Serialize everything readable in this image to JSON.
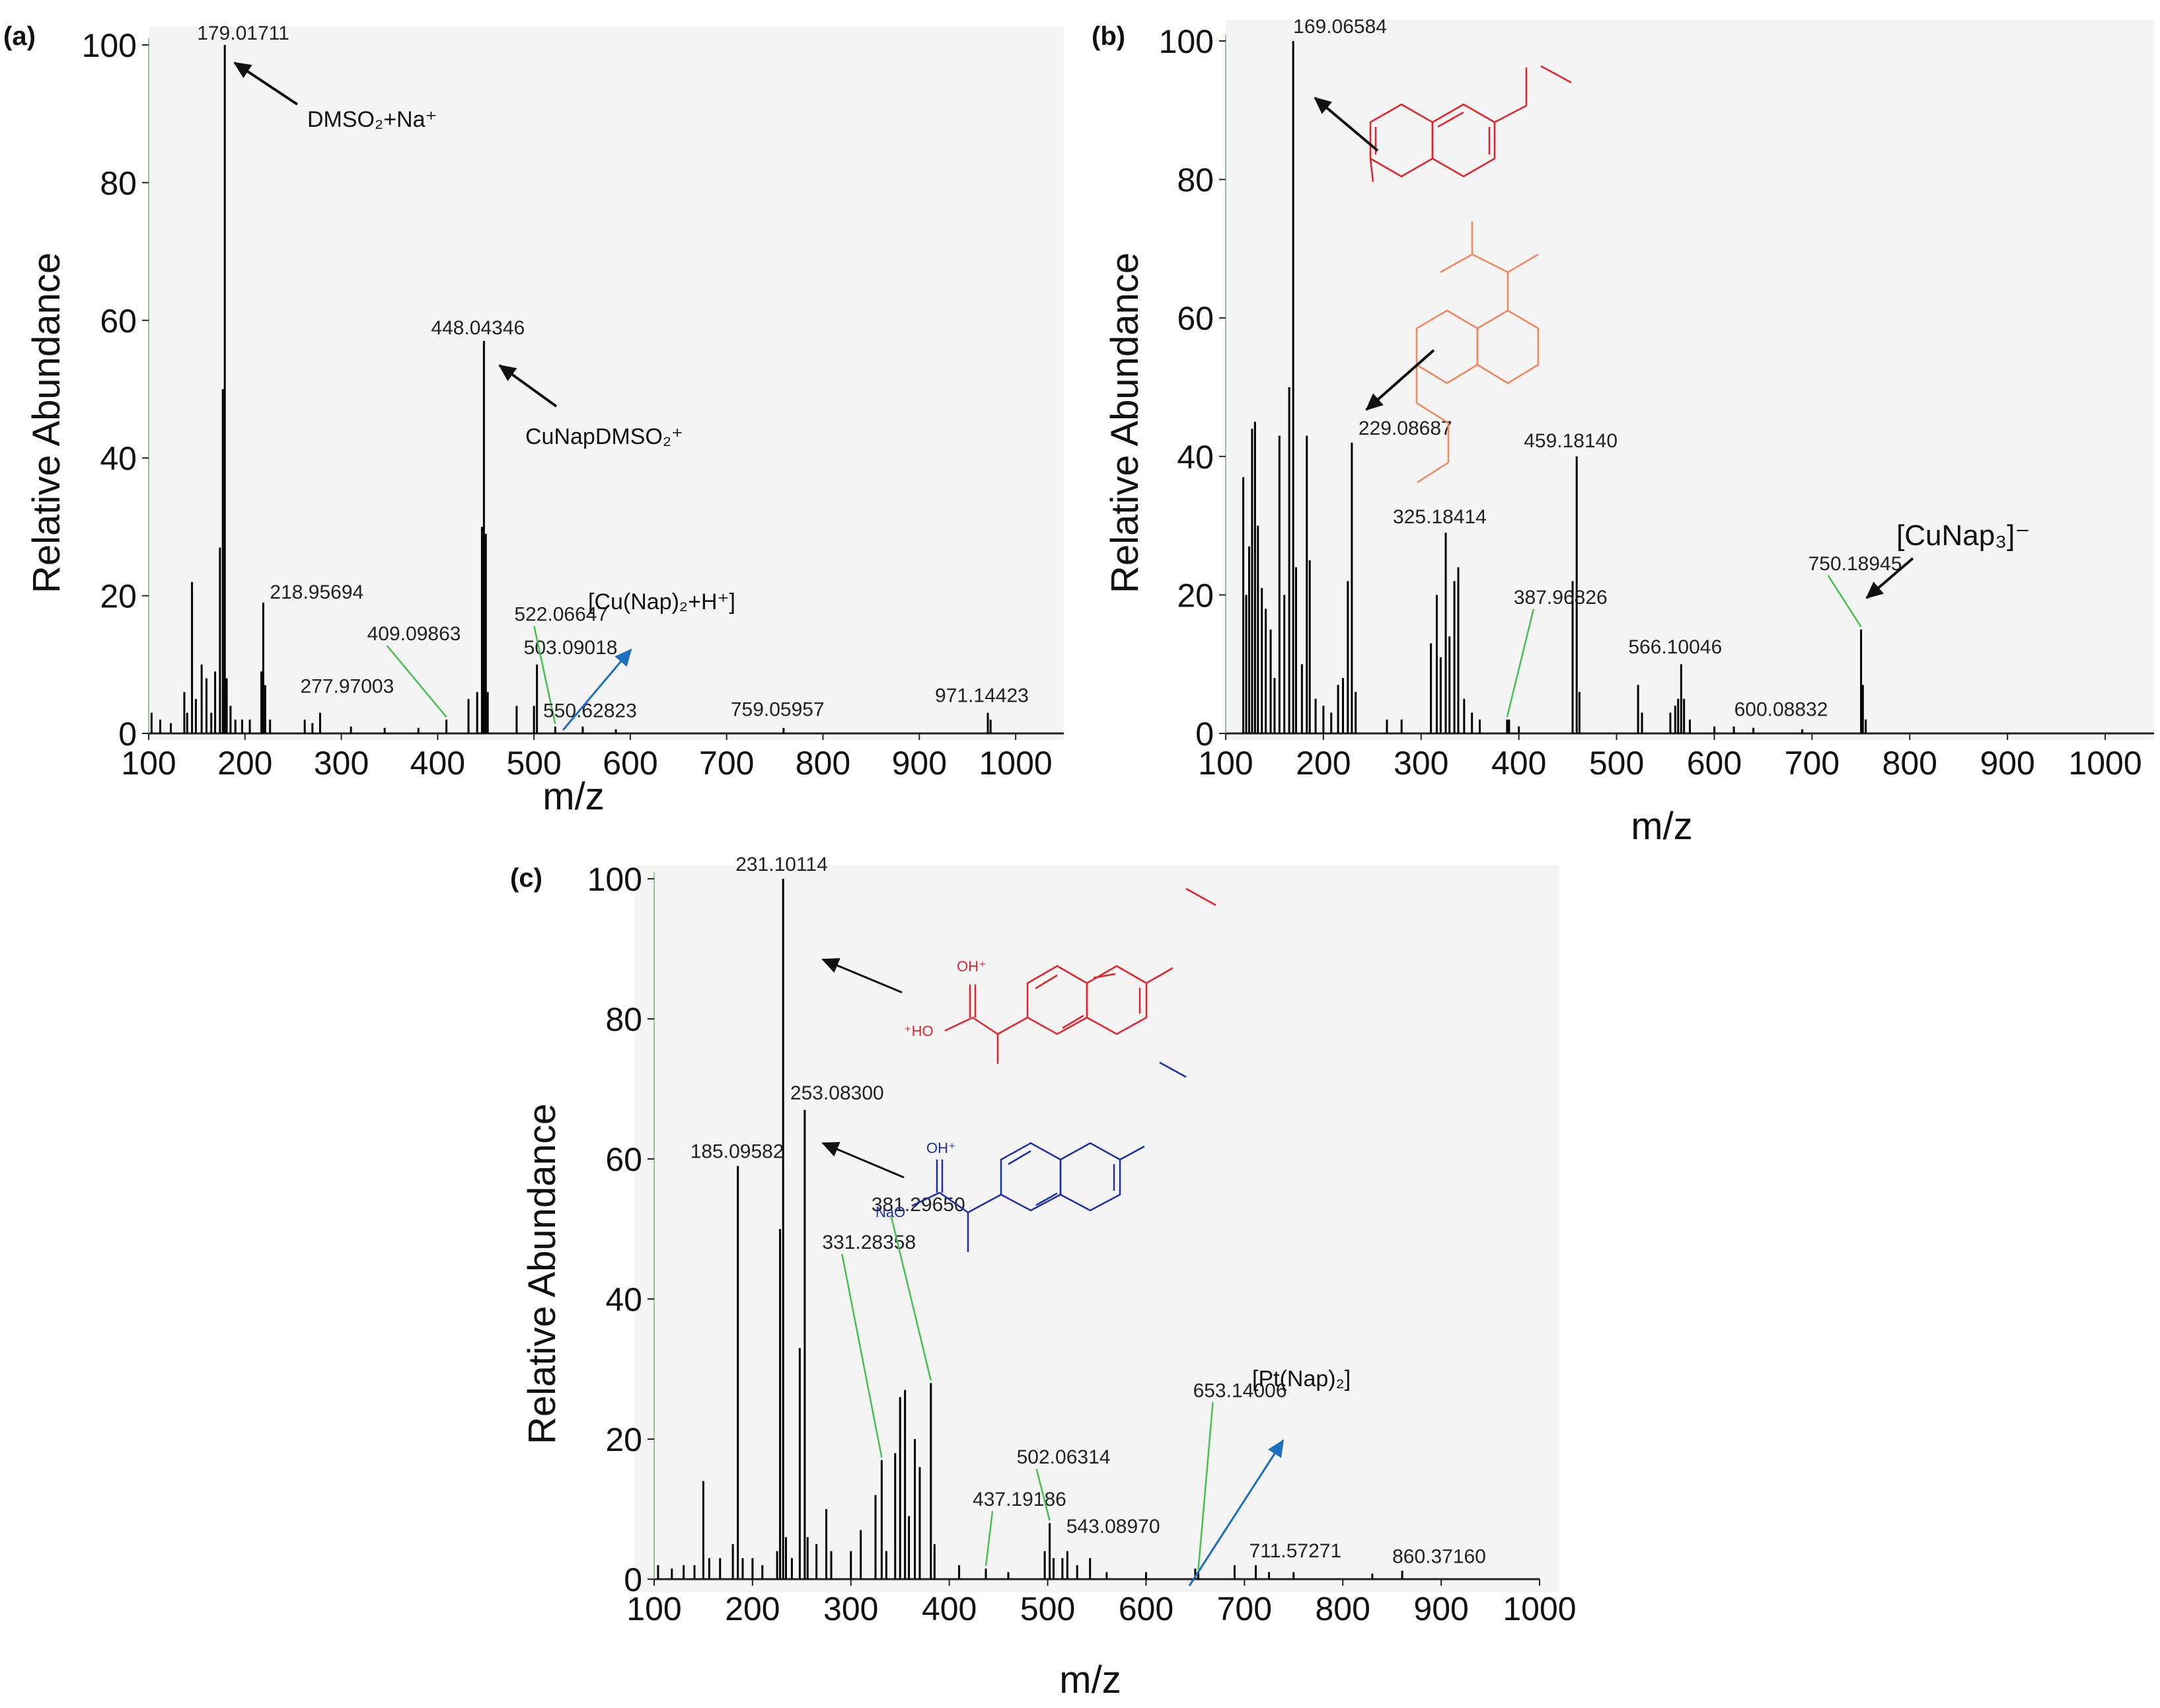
{
  "chart_data": [
    {
      "panel": "(a)",
      "type": "bar",
      "xlabel": "m/z",
      "ylabel": "Relative Abundance",
      "xlim": [
        100,
        1050
      ],
      "ylim": [
        0,
        100
      ],
      "xticks": [
        100,
        200,
        300,
        400,
        500,
        600,
        700,
        800,
        900,
        1000
      ],
      "yticks": [
        0,
        20,
        40,
        60,
        80,
        100
      ],
      "peaks": [
        {
          "x": 103,
          "y": 3
        },
        {
          "x": 112,
          "y": 2
        },
        {
          "x": 123,
          "y": 1.5
        },
        {
          "x": 137,
          "y": 6
        },
        {
          "x": 140,
          "y": 3
        },
        {
          "x": 145,
          "y": 22
        },
        {
          "x": 149,
          "y": 5
        },
        {
          "x": 155,
          "y": 10
        },
        {
          "x": 160,
          "y": 8
        },
        {
          "x": 165,
          "y": 3
        },
        {
          "x": 169,
          "y": 9
        },
        {
          "x": 174,
          "y": 27
        },
        {
          "x": 177,
          "y": 50
        },
        {
          "x": 179.01711,
          "y": 100
        },
        {
          "x": 181,
          "y": 8
        },
        {
          "x": 185,
          "y": 4
        },
        {
          "x": 190,
          "y": 2
        },
        {
          "x": 197,
          "y": 2
        },
        {
          "x": 205,
          "y": 2
        },
        {
          "x": 217,
          "y": 9
        },
        {
          "x": 218.95694,
          "y": 19
        },
        {
          "x": 221,
          "y": 7
        },
        {
          "x": 226,
          "y": 2
        },
        {
          "x": 262,
          "y": 2
        },
        {
          "x": 270,
          "y": 1.5
        },
        {
          "x": 277.97003,
          "y": 3
        },
        {
          "x": 310,
          "y": 1
        },
        {
          "x": 345,
          "y": 0.8
        },
        {
          "x": 380,
          "y": 0.8
        },
        {
          "x": 409.09863,
          "y": 2
        },
        {
          "x": 432,
          "y": 5
        },
        {
          "x": 441,
          "y": 6
        },
        {
          "x": 446,
          "y": 30
        },
        {
          "x": 448.04346,
          "y": 57
        },
        {
          "x": 450,
          "y": 29
        },
        {
          "x": 452,
          "y": 6
        },
        {
          "x": 482,
          "y": 4
        },
        {
          "x": 500,
          "y": 4
        },
        {
          "x": 503.09018,
          "y": 10
        },
        {
          "x": 522.06647,
          "y": 1
        },
        {
          "x": 550.62823,
          "y": 1
        },
        {
          "x": 585,
          "y": 0.6
        },
        {
          "x": 759.05957,
          "y": 0.8
        },
        {
          "x": 971.14423,
          "y": 3
        },
        {
          "x": 974,
          "y": 2
        }
      ],
      "peak_labels": [
        {
          "x": 179.01711,
          "text": "179.01711"
        },
        {
          "x": 218.95694,
          "text": "218.95694"
        },
        {
          "x": 277.97003,
          "text": "277.97003"
        },
        {
          "x": 409.09863,
          "text": "409.09863"
        },
        {
          "x": 448.04346,
          "text": "448.04346"
        },
        {
          "x": 503.09018,
          "text": "503.09018"
        },
        {
          "x": 522.06647,
          "text": "522.06647"
        },
        {
          "x": 550.62823,
          "text": "550.62823"
        },
        {
          "x": 759.05957,
          "text": "759.05957"
        },
        {
          "x": 971.14423,
          "text": "971.14423"
        }
      ],
      "annotations": [
        {
          "target": 179.01711,
          "text": "DMSO₂+Na⁺"
        },
        {
          "target": 448.04346,
          "text": "CuNapDMSO₂⁺"
        },
        {
          "target": 522.06647,
          "text": "[Cu(Nap)₂+H⁺]"
        }
      ]
    },
    {
      "panel": "(b)",
      "type": "bar",
      "xlabel": "m/z",
      "ylabel": "Relative Abundance",
      "xlim": [
        100,
        1050
      ],
      "ylim": [
        0,
        100
      ],
      "xticks": [
        100,
        200,
        300,
        400,
        500,
        600,
        700,
        800,
        900,
        1000
      ],
      "yticks": [
        0,
        20,
        40,
        60,
        80,
        100
      ],
      "peaks": [
        {
          "x": 118,
          "y": 37
        },
        {
          "x": 121,
          "y": 20
        },
        {
          "x": 124,
          "y": 27
        },
        {
          "x": 127,
          "y": 44
        },
        {
          "x": 130,
          "y": 45
        },
        {
          "x": 133,
          "y": 30
        },
        {
          "x": 137,
          "y": 21
        },
        {
          "x": 141,
          "y": 18
        },
        {
          "x": 146,
          "y": 15
        },
        {
          "x": 150,
          "y": 8
        },
        {
          "x": 155,
          "y": 43
        },
        {
          "x": 160,
          "y": 20
        },
        {
          "x": 165,
          "y": 50
        },
        {
          "x": 169.06584,
          "y": 100
        },
        {
          "x": 172,
          "y": 24
        },
        {
          "x": 178,
          "y": 10
        },
        {
          "x": 183,
          "y": 43
        },
        {
          "x": 186,
          "y": 25
        },
        {
          "x": 192,
          "y": 5
        },
        {
          "x": 200,
          "y": 4
        },
        {
          "x": 208,
          "y": 3
        },
        {
          "x": 215,
          "y": 7
        },
        {
          "x": 220,
          "y": 8
        },
        {
          "x": 225,
          "y": 22
        },
        {
          "x": 229.08687,
          "y": 42
        },
        {
          "x": 233,
          "y": 6
        },
        {
          "x": 265,
          "y": 2
        },
        {
          "x": 280,
          "y": 2
        },
        {
          "x": 310,
          "y": 13
        },
        {
          "x": 316,
          "y": 20
        },
        {
          "x": 320,
          "y": 11
        },
        {
          "x": 325.18414,
          "y": 29
        },
        {
          "x": 329,
          "y": 14
        },
        {
          "x": 334,
          "y": 22
        },
        {
          "x": 338,
          "y": 24
        },
        {
          "x": 344,
          "y": 5
        },
        {
          "x": 352,
          "y": 3
        },
        {
          "x": 360,
          "y": 2
        },
        {
          "x": 387.96826,
          "y": 2
        },
        {
          "x": 390,
          "y": 2
        },
        {
          "x": 400,
          "y": 1
        },
        {
          "x": 455,
          "y": 22
        },
        {
          "x": 459.1814,
          "y": 40
        },
        {
          "x": 462,
          "y": 6
        },
        {
          "x": 522,
          "y": 7
        },
        {
          "x": 526,
          "y": 3
        },
        {
          "x": 555,
          "y": 3
        },
        {
          "x": 560,
          "y": 4
        },
        {
          "x": 563,
          "y": 5
        },
        {
          "x": 566.10046,
          "y": 10
        },
        {
          "x": 569,
          "y": 5
        },
        {
          "x": 575,
          "y": 2
        },
        {
          "x": 600.08832,
          "y": 1
        },
        {
          "x": 620,
          "y": 1
        },
        {
          "x": 640,
          "y": 0.8
        },
        {
          "x": 690,
          "y": 0.6
        },
        {
          "x": 750.18945,
          "y": 15
        },
        {
          "x": 752,
          "y": 7
        },
        {
          "x": 755,
          "y": 2
        }
      ],
      "peak_labels": [
        {
          "x": 169.06584,
          "text": "169.06584"
        },
        {
          "x": 229.08687,
          "text": "229.08687"
        },
        {
          "x": 325.18414,
          "text": "325.18414"
        },
        {
          "x": 387.96826,
          "text": "387.96826"
        },
        {
          "x": 459.1814,
          "text": "459.18140"
        },
        {
          "x": 566.10046,
          "text": "566.10046"
        },
        {
          "x": 600.08832,
          "text": "600.08832"
        },
        {
          "x": 750.18945,
          "text": "750.18945"
        }
      ],
      "annotations": [
        {
          "target": 750.18945,
          "text": "[CuNap₃]⁻"
        }
      ]
    },
    {
      "panel": "(c)",
      "type": "bar",
      "xlabel": "m/z",
      "ylabel": "Relative Abundance",
      "xlim": [
        100,
        1000
      ],
      "ylim": [
        0,
        100
      ],
      "xticks": [
        100,
        200,
        300,
        400,
        500,
        600,
        700,
        800,
        900,
        1000
      ],
      "yticks": [
        0,
        20,
        40,
        60,
        80,
        100
      ],
      "peaks": [
        {
          "x": 104,
          "y": 2
        },
        {
          "x": 118,
          "y": 1.5
        },
        {
          "x": 130,
          "y": 2
        },
        {
          "x": 141,
          "y": 2
        },
        {
          "x": 150,
          "y": 14
        },
        {
          "x": 156,
          "y": 3
        },
        {
          "x": 167,
          "y": 3
        },
        {
          "x": 180,
          "y": 5
        },
        {
          "x": 185.09582,
          "y": 59
        },
        {
          "x": 190,
          "y": 3
        },
        {
          "x": 200,
          "y": 3
        },
        {
          "x": 210,
          "y": 2
        },
        {
          "x": 225,
          "y": 4
        },
        {
          "x": 228,
          "y": 50
        },
        {
          "x": 231.10114,
          "y": 100
        },
        {
          "x": 234,
          "y": 6
        },
        {
          "x": 240,
          "y": 3
        },
        {
          "x": 248,
          "y": 33
        },
        {
          "x": 253.083,
          "y": 67
        },
        {
          "x": 256,
          "y": 6
        },
        {
          "x": 265,
          "y": 5
        },
        {
          "x": 275,
          "y": 10
        },
        {
          "x": 280,
          "y": 4
        },
        {
          "x": 300,
          "y": 4
        },
        {
          "x": 310,
          "y": 7
        },
        {
          "x": 325,
          "y": 12
        },
        {
          "x": 331.28358,
          "y": 17
        },
        {
          "x": 336,
          "y": 4
        },
        {
          "x": 345,
          "y": 18
        },
        {
          "x": 350,
          "y": 26
        },
        {
          "x": 355,
          "y": 27
        },
        {
          "x": 359,
          "y": 9
        },
        {
          "x": 365,
          "y": 20
        },
        {
          "x": 370,
          "y": 16
        },
        {
          "x": 381.2965,
          "y": 28
        },
        {
          "x": 385,
          "y": 5
        },
        {
          "x": 410,
          "y": 2
        },
        {
          "x": 437.19186,
          "y": 1.5
        },
        {
          "x": 460,
          "y": 1
        },
        {
          "x": 497,
          "y": 4
        },
        {
          "x": 502.06314,
          "y": 8
        },
        {
          "x": 506,
          "y": 3
        },
        {
          "x": 515,
          "y": 3
        },
        {
          "x": 520,
          "y": 4
        },
        {
          "x": 530,
          "y": 2
        },
        {
          "x": 543.0897,
          "y": 3
        },
        {
          "x": 560,
          "y": 1
        },
        {
          "x": 600,
          "y": 1
        },
        {
          "x": 650,
          "y": 1.5
        },
        {
          "x": 653.14006,
          "y": 1
        },
        {
          "x": 690,
          "y": 2
        },
        {
          "x": 711.57271,
          "y": 2
        },
        {
          "x": 725,
          "y": 1
        },
        {
          "x": 750,
          "y": 1
        },
        {
          "x": 830,
          "y": 0.8
        },
        {
          "x": 860.3716,
          "y": 1.2
        }
      ],
      "peak_labels": [
        {
          "x": 185.09582,
          "text": "185.09582"
        },
        {
          "x": 231.10114,
          "text": "231.10114"
        },
        {
          "x": 253.083,
          "text": "253.08300"
        },
        {
          "x": 331.28358,
          "text": "331.28358"
        },
        {
          "x": 381.2965,
          "text": "381.29650"
        },
        {
          "x": 437.19186,
          "text": "437.19186"
        },
        {
          "x": 502.06314,
          "text": "502.06314"
        },
        {
          "x": 543.0897,
          "text": "543.08970"
        },
        {
          "x": 653.14006,
          "text": "653.14006"
        },
        {
          "x": 711.57271,
          "text": "711.57271"
        },
        {
          "x": 860.3716,
          "text": "860.37160"
        }
      ],
      "annotations": [
        {
          "target": 653.14006,
          "text": "[Pt(Nap)₂]"
        }
      ]
    }
  ],
  "structure_labels": {
    "c_red_oh": "OH⁺",
    "c_red_ho": "⁺HO",
    "c_blue_oh": "OH⁺",
    "c_blue_nao": "NaO"
  },
  "colors": {
    "peak": "#000000",
    "plot_bg": "#f2f2f2",
    "leader": "#46c04e",
    "blue_arrow": "#1f6fc0",
    "red_structure": "#e8202a",
    "orange_structure": "#f4845c",
    "blue_structure": "#1a2fa8",
    "purple_label": "#7a2590"
  }
}
